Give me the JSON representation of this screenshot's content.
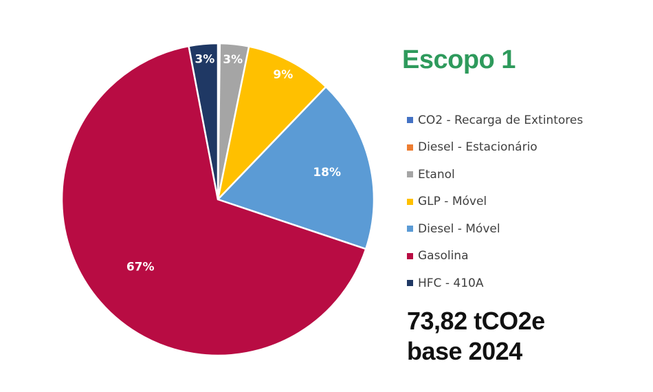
{
  "chart_data": {
    "type": "pie",
    "title": "Escopo 1",
    "slices": [
      {
        "name": "CO2 - Recarga de Extintores",
        "value": 0.1,
        "label": "",
        "color": "#4472c4"
      },
      {
        "name": "Diesel - Estacionário",
        "value": 0.1,
        "label": "",
        "color": "#ed7d31"
      },
      {
        "name": "Etanol",
        "value": 3,
        "label": "3%",
        "color": "#a5a5a5"
      },
      {
        "name": "GLP - Móvel",
        "value": 9,
        "label": "9%",
        "color": "#ffc000"
      },
      {
        "name": "Diesel - Móvel",
        "value": 18,
        "label": "18%",
        "color": "#5b9bd5"
      },
      {
        "name": "Gasolina",
        "value": 67,
        "label": "67%",
        "color": "#b80c43"
      },
      {
        "name": "HFC - 410A",
        "value": 3,
        "label": "3%",
        "color": "#1f3864"
      }
    ],
    "legend_position": "right"
  },
  "summary": {
    "total": "73,82 tCO2e",
    "base": "base 2024"
  }
}
